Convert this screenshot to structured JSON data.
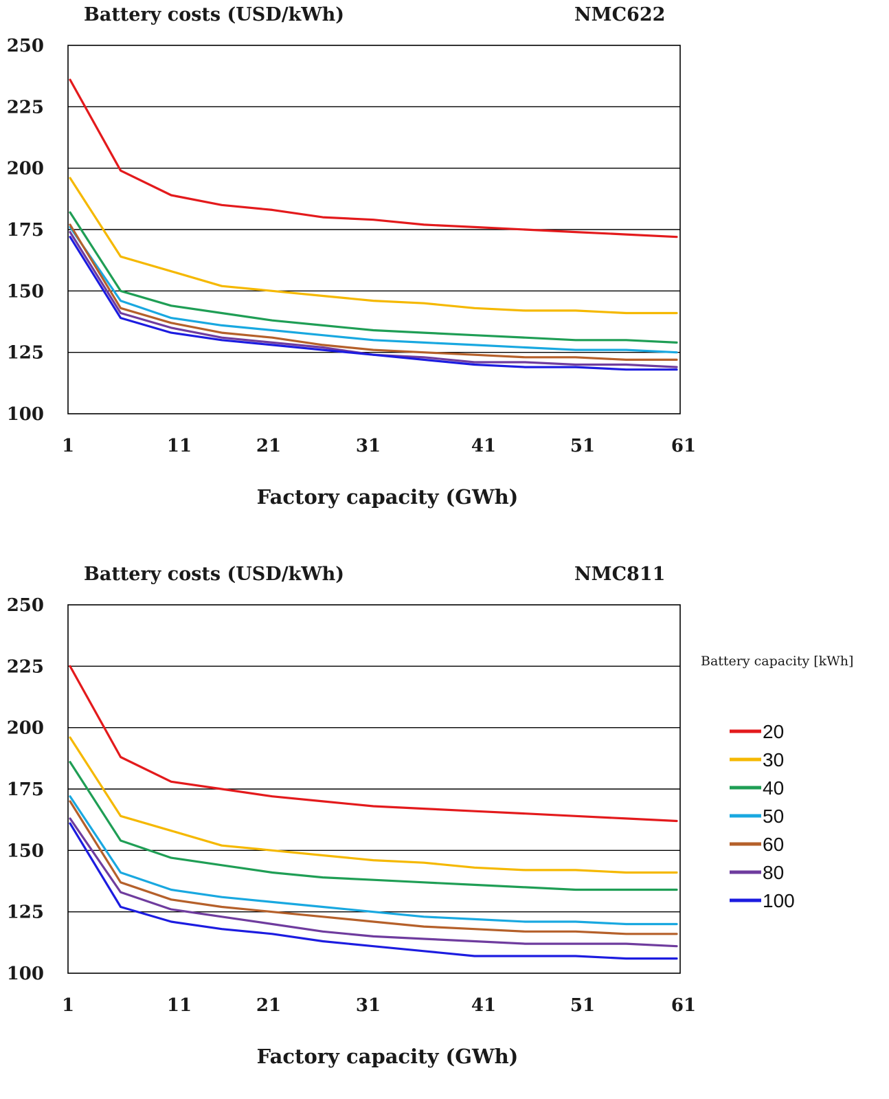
{
  "chart_data": [
    {
      "type": "line",
      "title": "Battery costs (USD/kWh)",
      "subtitle": "NMC622",
      "xlabel": "Factory capacity (GWh)",
      "ylabel": "",
      "ylim": [
        100,
        250
      ],
      "yticks": [
        100,
        125,
        150,
        175,
        200,
        225,
        250
      ],
      "xticks": [
        1,
        11,
        21,
        31,
        41,
        51,
        61
      ],
      "grid": "horizontal",
      "x": [
        1,
        6,
        11,
        16,
        21,
        26,
        31,
        36,
        41,
        46,
        51,
        56,
        61
      ],
      "series": [
        {
          "name": "20",
          "color": "#e31a1c",
          "values": [
            236,
            199,
            189,
            185,
            183,
            180,
            179,
            177,
            176,
            175,
            174,
            173,
            172
          ]
        },
        {
          "name": "30",
          "color": "#f5b800",
          "values": [
            196,
            164,
            158,
            152,
            150,
            148,
            146,
            145,
            143,
            142,
            142,
            141,
            141
          ]
        },
        {
          "name": "40",
          "color": "#1f9e55",
          "values": [
            182,
            150,
            144,
            141,
            138,
            136,
            134,
            133,
            132,
            131,
            130,
            130,
            129
          ]
        },
        {
          "name": "50",
          "color": "#19a8e0",
          "values": [
            176,
            146,
            139,
            136,
            134,
            132,
            130,
            129,
            128,
            127,
            126,
            126,
            125
          ]
        },
        {
          "name": "60",
          "color": "#b5602a",
          "values": [
            177,
            143,
            137,
            133,
            131,
            128,
            126,
            125,
            124,
            123,
            123,
            122,
            122
          ]
        },
        {
          "name": "80",
          "color": "#6f3c9e",
          "values": [
            174,
            141,
            135,
            131,
            129,
            127,
            124,
            123,
            121,
            121,
            120,
            120,
            119
          ]
        },
        {
          "name": "100",
          "color": "#1c1ce0",
          "values": [
            172,
            139,
            133,
            130,
            128,
            126,
            124,
            122,
            120,
            119,
            119,
            118,
            118
          ]
        }
      ]
    },
    {
      "type": "line",
      "title": "Battery costs (USD/kWh)",
      "subtitle": "NMC811",
      "xlabel": "Factory capacity (GWh)",
      "ylabel": "",
      "ylim": [
        100,
        250
      ],
      "yticks": [
        100,
        125,
        150,
        175,
        200,
        225,
        250
      ],
      "xticks": [
        1,
        11,
        21,
        31,
        41,
        51,
        61
      ],
      "grid": "horizontal",
      "legend_title": "Battery capacity  [kWh]",
      "legend_position": "right",
      "x": [
        1,
        6,
        11,
        16,
        21,
        26,
        31,
        36,
        41,
        46,
        51,
        56,
        61
      ],
      "series": [
        {
          "name": "20",
          "color": "#e31a1c",
          "values": [
            225,
            188,
            178,
            175,
            172,
            170,
            168,
            167,
            166,
            165,
            164,
            163,
            162
          ]
        },
        {
          "name": "30",
          "color": "#f5b800",
          "values": [
            196,
            164,
            158,
            152,
            150,
            148,
            146,
            145,
            143,
            142,
            142,
            141,
            141
          ]
        },
        {
          "name": "40",
          "color": "#1f9e55",
          "values": [
            186,
            154,
            147,
            144,
            141,
            139,
            138,
            137,
            136,
            135,
            134,
            134,
            134
          ]
        },
        {
          "name": "50",
          "color": "#19a8e0",
          "values": [
            172,
            141,
            134,
            131,
            129,
            127,
            125,
            123,
            122,
            121,
            121,
            120,
            120
          ]
        },
        {
          "name": "60",
          "color": "#b5602a",
          "values": [
            170,
            137,
            130,
            127,
            125,
            123,
            121,
            119,
            118,
            117,
            117,
            116,
            116
          ]
        },
        {
          "name": "80",
          "color": "#6f3c9e",
          "values": [
            163,
            133,
            126,
            123,
            120,
            117,
            115,
            114,
            113,
            112,
            112,
            112,
            111
          ]
        },
        {
          "name": "100",
          "color": "#1c1ce0",
          "values": [
            161,
            127,
            121,
            118,
            116,
            113,
            111,
            109,
            107,
            107,
            107,
            106,
            106
          ]
        }
      ]
    }
  ]
}
